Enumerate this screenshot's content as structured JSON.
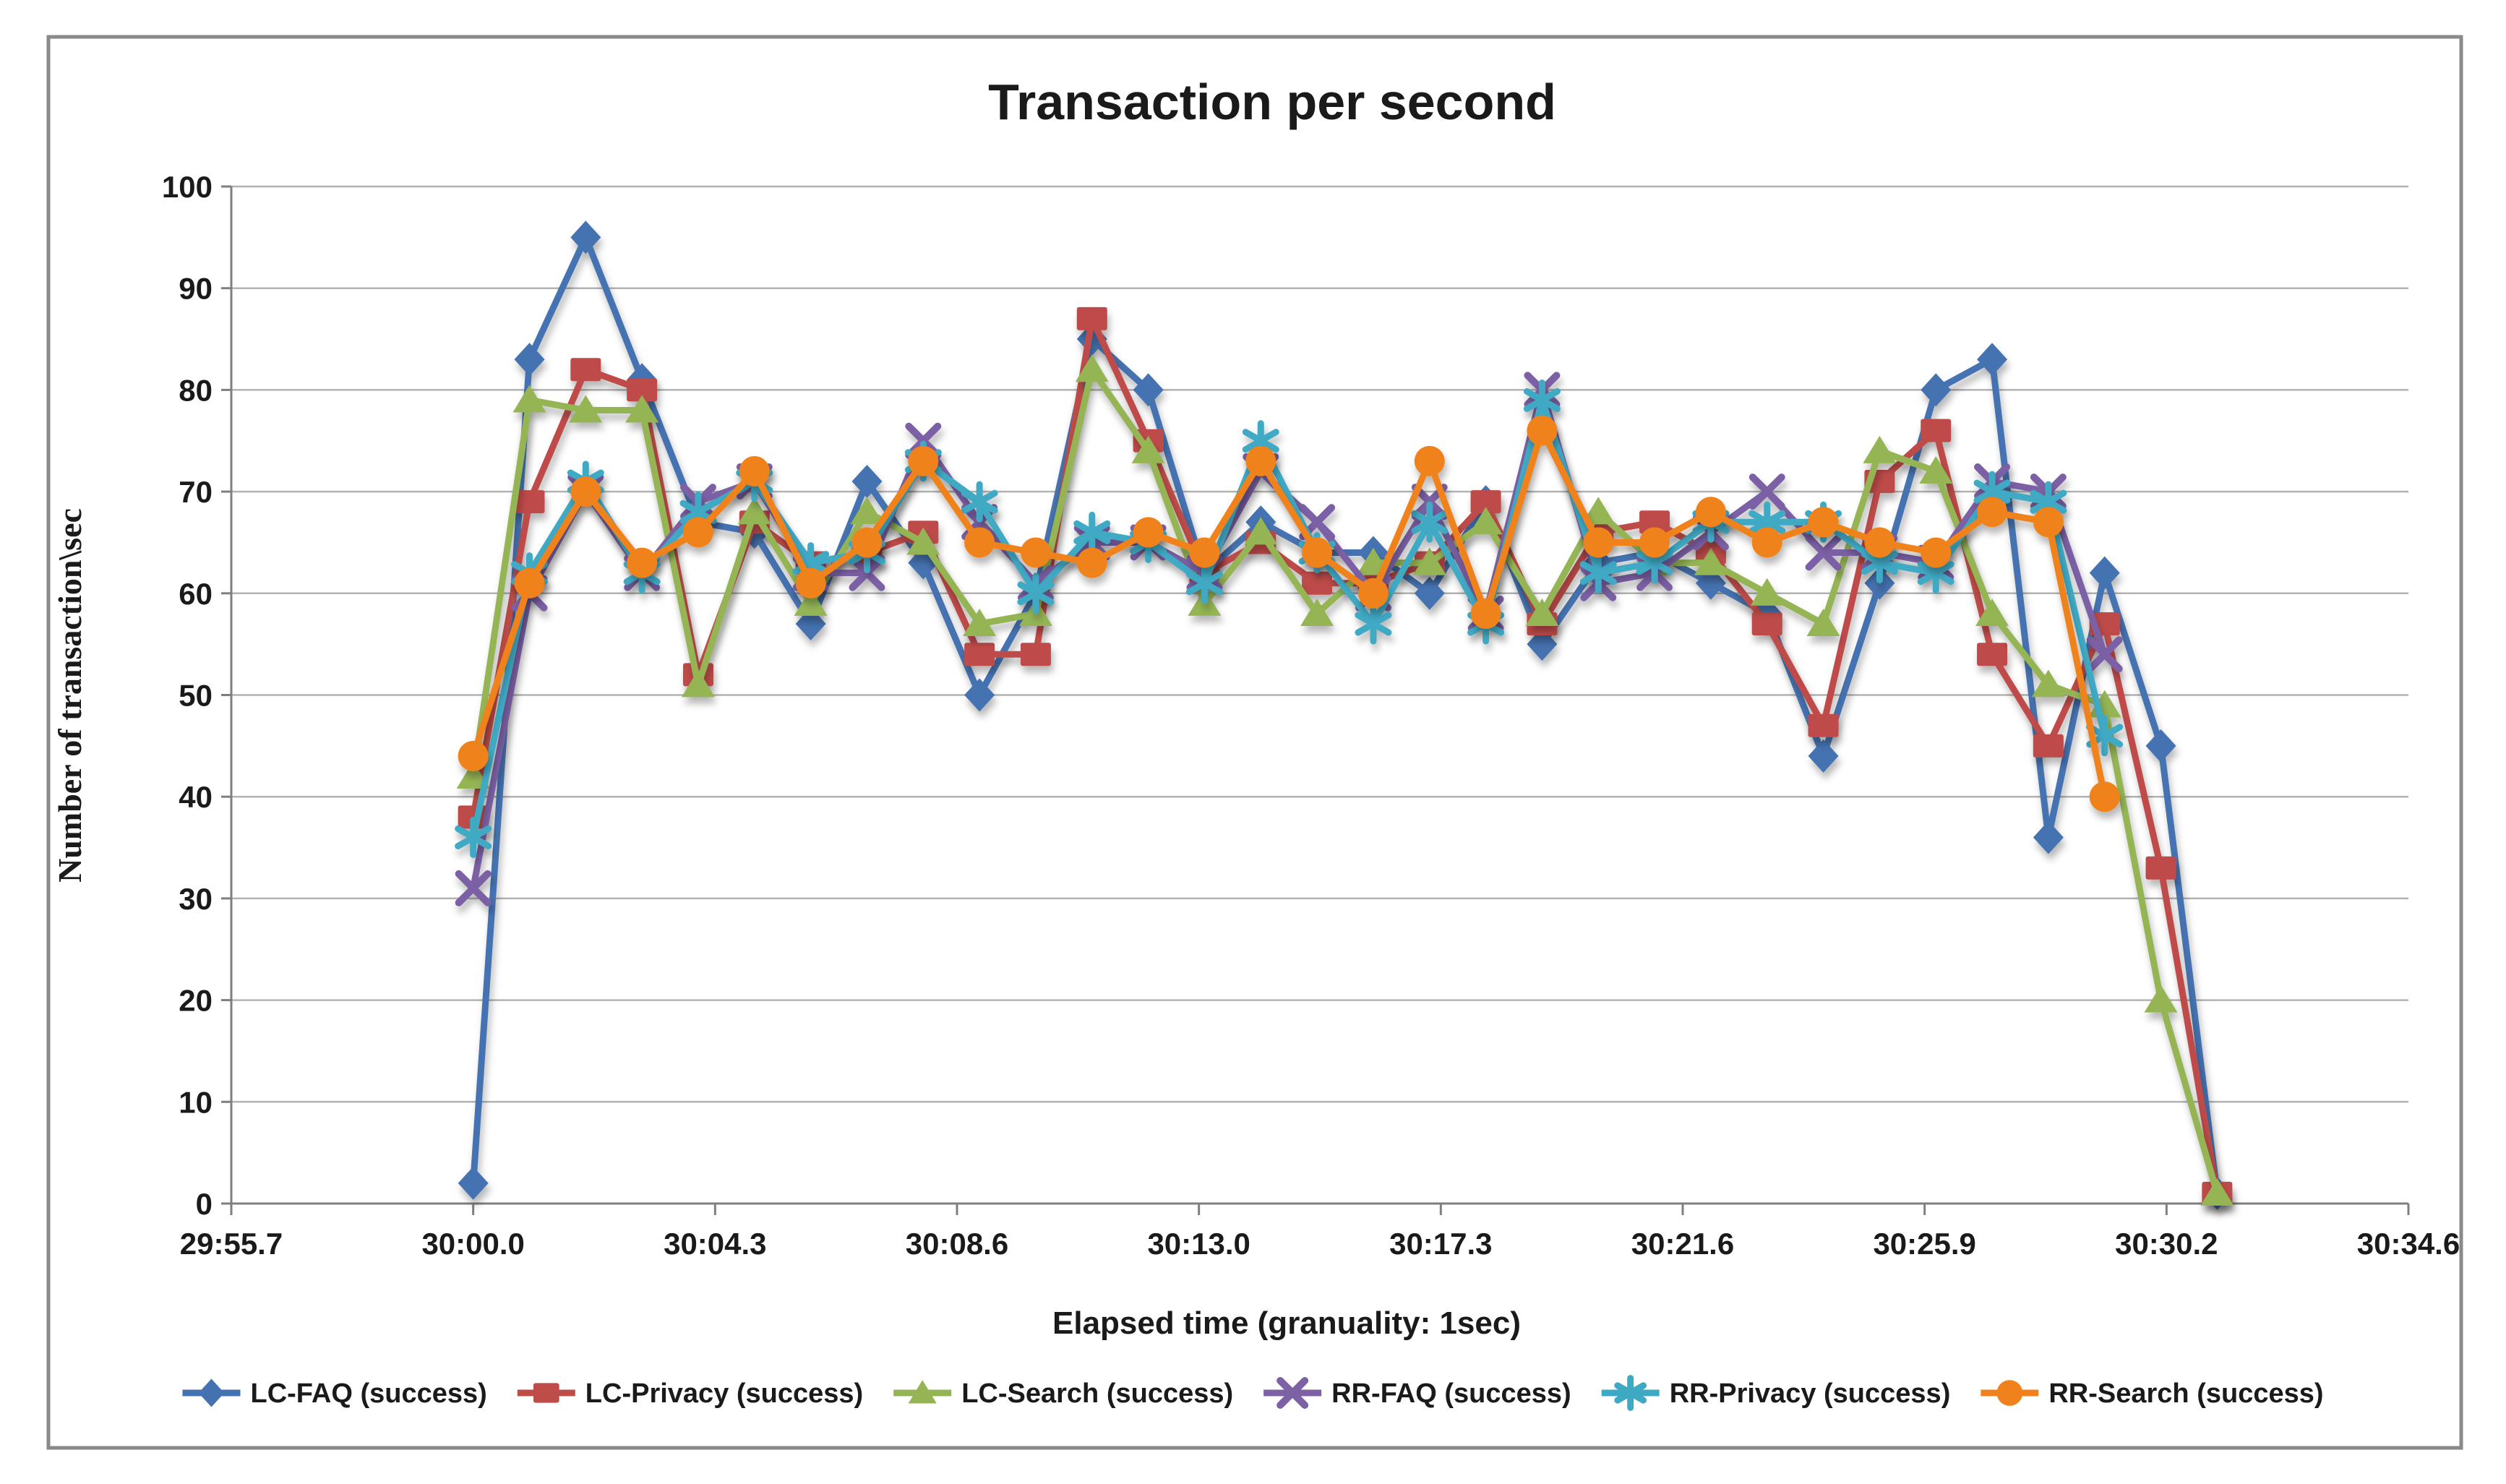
{
  "chart": {
    "title": "Transaction per second",
    "x_axis_title": "Elapsed time (granuality: 1sec)",
    "y_axis_title": "Number of transaction\\sec"
  },
  "chart_data": {
    "type": "line",
    "title": "Transaction per second",
    "xlabel": "Elapsed time (granuality: 1sec)",
    "ylabel": "Number of transaction\\sec",
    "ylim": [
      0,
      100
    ],
    "y_tick_step": 10,
    "grid": "horizontal-only",
    "legend_position": "bottom",
    "x_tick_labels": [
      "29:55.7",
      "30:00.0",
      "30:04.3",
      "30:08.6",
      "30:13.0",
      "30:17.3",
      "30:21.6",
      "30:25.9",
      "30:30.2",
      "30:34.6"
    ],
    "x_tick_interval_seconds": 4.3,
    "series_start_at_label": "30:00.0",
    "series_start_second": 4.3,
    "series_interval_seconds": 1,
    "colors": {
      "gridline": "#b3b3b3",
      "axis": "#7f7f7f",
      "border": "#8a8a8a",
      "text": "#1a1a1a"
    },
    "series": [
      {
        "name": "LC-FAQ (success)",
        "marker": "diamond",
        "color": "#4472b0",
        "values": [
          2,
          83,
          95,
          81,
          67,
          66,
          57,
          71,
          63,
          50,
          60,
          85,
          80,
          62,
          67,
          64,
          64,
          60,
          69,
          55,
          63,
          64,
          61,
          58,
          44,
          61,
          80,
          83,
          36,
          62,
          45,
          1
        ]
      },
      {
        "name": "LC-Privacy (success)",
        "marker": "square",
        "color": "#be4c48",
        "values": [
          38,
          69,
          82,
          80,
          52,
          67,
          63,
          64,
          66,
          54,
          54,
          87,
          75,
          62,
          65,
          61,
          61,
          63,
          69,
          57,
          66,
          67,
          64,
          57,
          47,
          71,
          76,
          54,
          45,
          57,
          33,
          1
        ]
      },
      {
        "name": "LC-Search (success)",
        "marker": "triangle",
        "color": "#95b554",
        "values": [
          42,
          79,
          78,
          78,
          51,
          68,
          59,
          68,
          65,
          57,
          58,
          82,
          74,
          59,
          66,
          58,
          63,
          63,
          67,
          58,
          68,
          63,
          63,
          60,
          57,
          74,
          72,
          58,
          51,
          49,
          20,
          1
        ]
      },
      {
        "name": "RR-FAQ (success)",
        "marker": "x",
        "color": "#7c61a5",
        "values": [
          31,
          60,
          70,
          62,
          69,
          71,
          62,
          62,
          75,
          67,
          61,
          65,
          65,
          62,
          72,
          67,
          60,
          69,
          58,
          80,
          61,
          62,
          66,
          70,
          64,
          64,
          63,
          71,
          70,
          54
        ]
      },
      {
        "name": "RR-Privacy (success)",
        "marker": "asterisk",
        "color": "#3fa9c4",
        "values": [
          36,
          62,
          71,
          62,
          68,
          71,
          63,
          64,
          73,
          69,
          60,
          66,
          65,
          61,
          75,
          64,
          57,
          67,
          57,
          79,
          62,
          63,
          67,
          67,
          67,
          63,
          62,
          70,
          69,
          46
        ]
      },
      {
        "name": "RR-Search (success)",
        "marker": "circle",
        "color": "#f0821e",
        "values": [
          44,
          61,
          70,
          63,
          66,
          72,
          61,
          65,
          73,
          65,
          64,
          63,
          66,
          64,
          73,
          64,
          60,
          73,
          58,
          76,
          65,
          65,
          68,
          65,
          67,
          65,
          64,
          68,
          67,
          40
        ]
      }
    ]
  }
}
